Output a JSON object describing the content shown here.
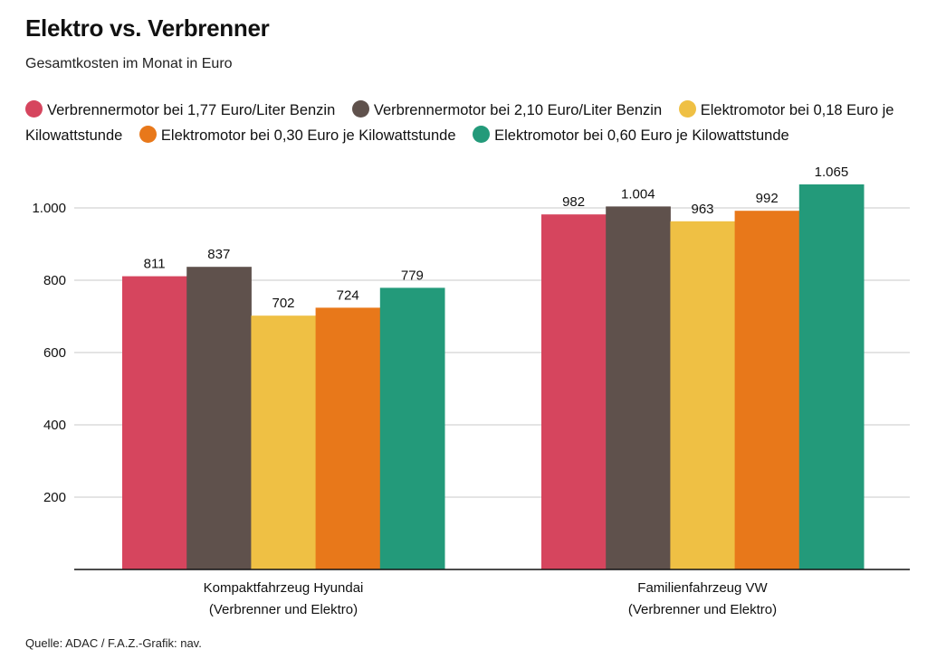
{
  "chart_data": {
    "type": "bar",
    "title": "Elektro vs. Verbrenner",
    "subtitle": "Gesamtkosten im Monat in Euro",
    "source": "Quelle: ADAC / F.A.Z.-Grafik: nav.",
    "categories": [
      [
        "Kompaktfahrzeug Hyundai",
        "(Verbrenner und Elektro)"
      ],
      [
        "Familienfahrzeug VW",
        "(Verbrenner und Elektro)"
      ]
    ],
    "series": [
      {
        "name": "Verbrennermotor bei 1,77 Euro/Liter Benzin",
        "color": "#d6455e",
        "values": [
          811,
          982
        ],
        "labels": [
          "811",
          "982"
        ]
      },
      {
        "name": "Verbrennermotor bei 2,10 Euro/Liter Benzin",
        "color": "#5f514c",
        "values": [
          837,
          1004
        ],
        "labels": [
          "837",
          "1.004"
        ]
      },
      {
        "name": "Elektromotor bei 0,18 Euro je Kilowattstunde",
        "color": "#efc044",
        "values": [
          702,
          963
        ],
        "labels": [
          "702",
          "963"
        ]
      },
      {
        "name": "Elektromotor bei 0,30 Euro je Kilowattstunde",
        "color": "#e8781a",
        "values": [
          724,
          992
        ],
        "labels": [
          "724",
          "992"
        ]
      },
      {
        "name": "Elektromotor bei 0,60 Euro je Kilowattstunde",
        "color": "#239a7a",
        "values": [
          779,
          1065
        ],
        "labels": [
          "779",
          "1.065"
        ]
      }
    ],
    "yticks": [
      200,
      400,
      600,
      800,
      1000
    ],
    "ytick_labels": [
      "200",
      "400",
      "600",
      "800",
      "1.000"
    ],
    "ylim": [
      0,
      1100
    ],
    "grid": true,
    "legend_position": "top"
  }
}
